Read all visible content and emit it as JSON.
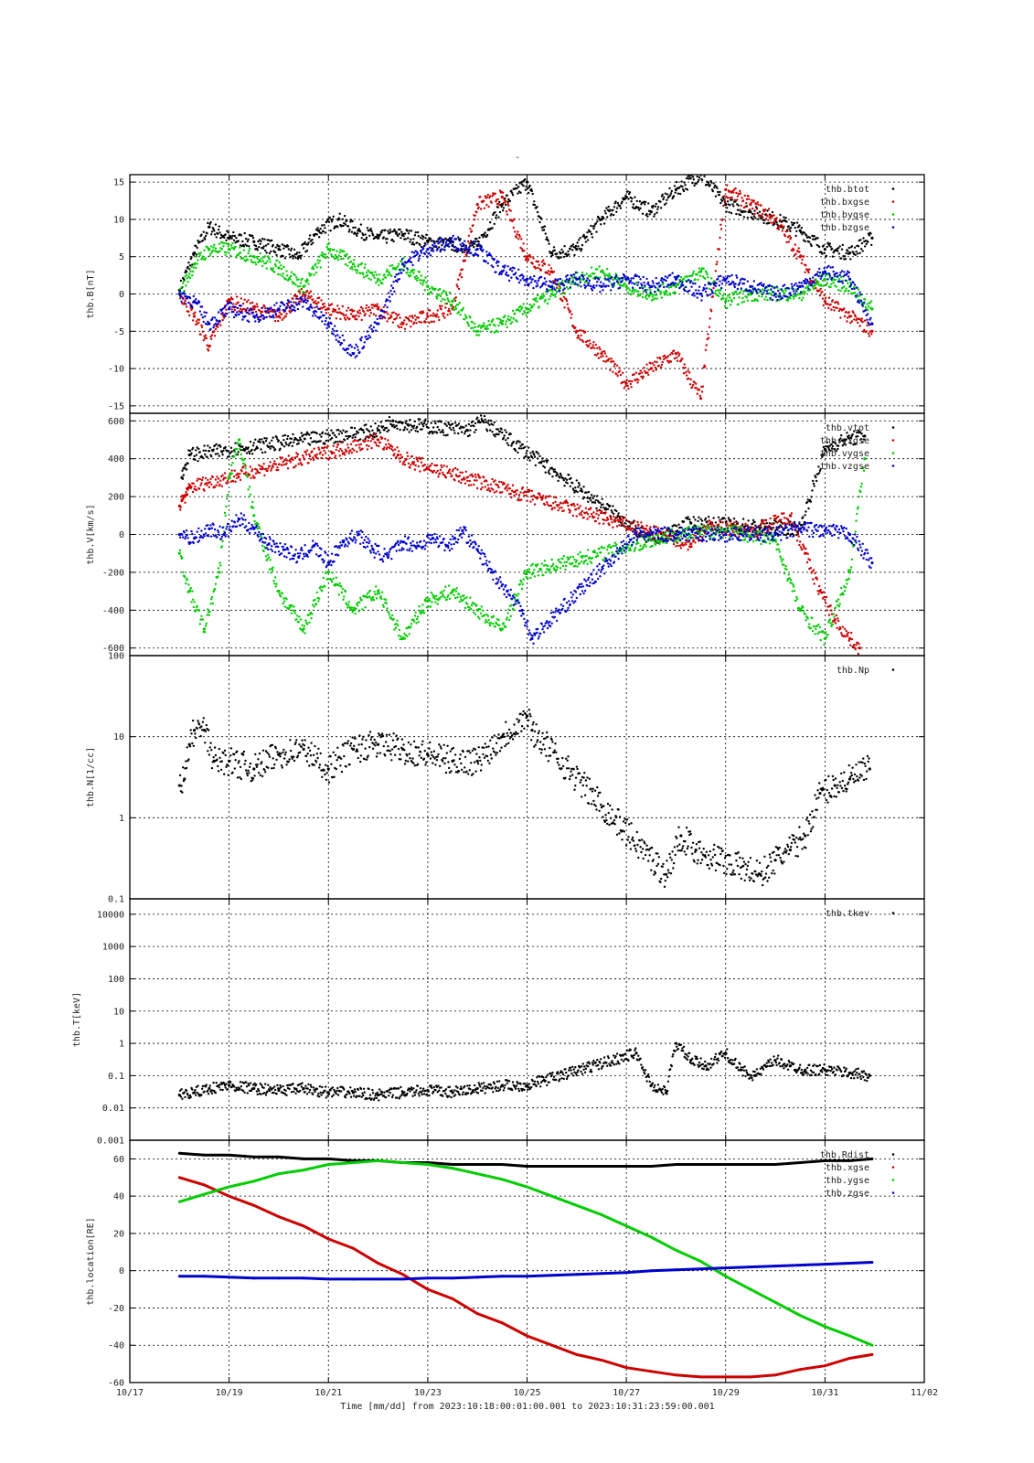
{
  "page": {
    "title": "-"
  },
  "chart_data": [
    {
      "type": "scatter",
      "ylabel": "thb.B[nT]",
      "ylim": [
        -16,
        16
      ],
      "y_ticks": [
        15,
        10,
        5,
        0,
        -5,
        -10,
        -15
      ],
      "legend_position": "top-right",
      "series": [
        {
          "name": "thb.btot",
          "color": "#000000",
          "x": [
            18.0,
            18.3,
            18.6,
            19.0,
            19.5,
            20.0,
            20.4,
            20.8,
            21.2,
            21.6,
            22.0,
            22.5,
            23.0,
            23.5,
            24.0,
            24.5,
            25.0,
            25.5,
            26.0,
            26.5,
            27.0,
            27.5,
            28.0,
            28.5,
            29.0,
            29.5,
            30.0,
            30.5,
            31.0,
            31.5,
            31.95
          ],
          "y": [
            0.5,
            5.5,
            9,
            7.5,
            7,
            6,
            5,
            8.5,
            10,
            8.5,
            7.5,
            8,
            7,
            6.5,
            6.5,
            12,
            15,
            5.5,
            6,
            10,
            13,
            11,
            14,
            16,
            12,
            11,
            10,
            8.5,
            6,
            5.5,
            7.5
          ]
        },
        {
          "name": "thb.bxgse",
          "color": "#cc0000",
          "x": [
            18.0,
            18.3,
            18.6,
            19.0,
            19.5,
            20.0,
            20.5,
            21.0,
            21.5,
            22.0,
            22.5,
            23.0,
            23.5,
            24.0,
            24.5,
            25.0,
            25.5,
            26.0,
            26.5,
            27.0,
            27.5,
            28.0,
            28.5,
            29.0,
            29.5,
            30.0,
            30.5,
            31.0,
            31.5,
            31.95
          ],
          "y": [
            0,
            -3,
            -7,
            -1,
            -2,
            -3,
            0,
            -2,
            -3,
            -2,
            -4,
            -3,
            -2,
            12,
            13,
            5,
            3,
            -5,
            -8,
            -12,
            -10,
            -8,
            -14,
            14,
            12,
            10,
            5,
            -1,
            -3,
            -5
          ]
        },
        {
          "name": "thb.bygse",
          "color": "#00cc00",
          "x": [
            18.0,
            18.3,
            18.6,
            19.0,
            19.5,
            20.0,
            20.5,
            21.0,
            21.5,
            22.0,
            22.5,
            23.0,
            23.5,
            24.0,
            24.5,
            25.0,
            25.5,
            26.0,
            26.5,
            27.0,
            27.5,
            28.0,
            28.5,
            29.0,
            29.5,
            30.0,
            30.5,
            31.0,
            31.5,
            31.95
          ],
          "y": [
            0,
            4,
            6,
            6,
            5,
            3.5,
            1,
            6,
            4,
            2,
            4,
            1,
            -1,
            -5,
            -4,
            -2,
            0,
            2,
            3,
            1,
            0,
            1,
            3,
            -1,
            0,
            0,
            0,
            2,
            1,
            -2
          ]
        },
        {
          "name": "thb.bzgse",
          "color": "#0000cc",
          "x": [
            18.0,
            18.3,
            18.6,
            19.0,
            19.5,
            20.0,
            20.5,
            21.0,
            21.5,
            22.0,
            22.5,
            23.0,
            23.5,
            24.0,
            24.5,
            25.0,
            25.5,
            26.0,
            26.5,
            27.0,
            27.5,
            28.0,
            28.5,
            29.0,
            29.5,
            30.0,
            30.5,
            31.0,
            31.5,
            31.95
          ],
          "y": [
            0,
            -1,
            -4,
            -2,
            -3,
            -2,
            -1,
            -4,
            -8,
            -4,
            4,
            6,
            7,
            6,
            3,
            2,
            1,
            2,
            1,
            2,
            1,
            2,
            0,
            2,
            1,
            0,
            1,
            3,
            2,
            -4
          ]
        }
      ]
    },
    {
      "type": "scatter",
      "ylabel": "thb.V[km/s]",
      "ylim": [
        -640,
        640
      ],
      "y_ticks": [
        600,
        400,
        200,
        0,
        -200,
        -400,
        -600
      ],
      "legend_position": "top-right",
      "series": [
        {
          "name": "thb.vtot",
          "color": "#000000",
          "x": [
            18.05,
            18.1,
            18.2,
            22.0,
            22.3,
            22.6,
            23.8,
            24.1,
            27.5,
            28.3,
            29.8,
            30.5,
            31.0,
            31.4,
            31.8
          ],
          "y": [
            300,
            350,
            420,
            550,
            600,
            580,
            550,
            600,
            -30,
            60,
            40,
            30,
            450,
            500,
            520
          ]
        },
        {
          "name": "thb.vxgse",
          "color": "#cc0000",
          "x": [
            18.0,
            18.05,
            18.1,
            18.15,
            18.2,
            22.0,
            22.4,
            22.7,
            28.3,
            28.6,
            29.6,
            30.3,
            30.6,
            30.9,
            31.2,
            31.5,
            31.7
          ],
          "y": [
            150,
            180,
            200,
            210,
            250,
            500,
            420,
            380,
            -50,
            40,
            20,
            100,
            -100,
            -300,
            -450,
            -550,
            -600
          ]
        },
        {
          "name": "thb.vygse",
          "color": "#00cc00",
          "x": [
            18.0,
            18.2,
            18.5,
            18.8,
            19.0,
            19.2,
            19.5,
            20.0,
            20.5,
            21.0,
            21.5,
            22.0,
            22.5,
            23.0,
            23.5,
            24.0,
            24.5,
            25.0,
            28.0,
            29.0,
            30.0,
            30.5,
            31.0,
            31.5,
            31.8
          ],
          "y": [
            -100,
            -300,
            -500,
            -200,
            300,
            500,
            100,
            -300,
            -500,
            -200,
            -400,
            -300,
            -550,
            -350,
            -300,
            -400,
            -500,
            -200,
            0,
            20,
            -30,
            -400,
            -550,
            -200,
            400
          ]
        },
        {
          "name": "thb.vzgse",
          "color": "#0000cc",
          "x": [
            18.0,
            18.3,
            18.6,
            18.9,
            19.2,
            19.5,
            19.8,
            20.1,
            20.4,
            20.7,
            21.0,
            21.3,
            21.6,
            21.9,
            22.2,
            22.5,
            22.8,
            23.1,
            23.4,
            23.7,
            24.0,
            24.3,
            24.6,
            24.9,
            25.1,
            27.2,
            28.0,
            29.0,
            30.0,
            30.5,
            31.0,
            31.5,
            31.95
          ],
          "y": [
            0,
            -20,
            30,
            0,
            80,
            30,
            -50,
            -80,
            -120,
            -60,
            -150,
            -40,
            0,
            -80,
            -120,
            -40,
            -60,
            -20,
            -60,
            20,
            -80,
            -200,
            -300,
            -400,
            -550,
            0,
            0,
            0,
            0,
            30,
            20,
            0,
            -150
          ]
        }
      ]
    },
    {
      "type": "scatter",
      "ylabel": "thb.N[1/cc]",
      "y_scale": "log",
      "ylim": [
        0.1,
        100
      ],
      "y_ticks": [
        "100",
        "10",
        "1",
        "0.1"
      ],
      "legend_position": "top-right",
      "series": [
        {
          "name": "thb.Np",
          "color": "#000000",
          "x": [
            18.0,
            18.1,
            18.2,
            18.3,
            18.5,
            18.7,
            19.0,
            19.5,
            20.0,
            20.5,
            21.0,
            21.5,
            22.0,
            22.5,
            23.0,
            23.5,
            24.0,
            24.5,
            25.0,
            25.1,
            27.8,
            28.1,
            28.4,
            29.7,
            30.0,
            30.3,
            30.6,
            30.9,
            31.2,
            31.5,
            31.9
          ],
          "y": [
            2.5,
            3,
            8,
            12,
            12,
            5,
            5,
            4,
            6,
            7,
            4,
            7,
            8,
            7,
            6,
            5,
            5,
            10,
            18,
            12,
            0.2,
            0.6,
            0.4,
            0.2,
            0.3,
            0.4,
            0.6,
            2,
            2.5,
            3,
            4
          ]
        }
      ]
    },
    {
      "type": "scatter",
      "ylabel": "thb.T[keV]",
      "y_scale": "log",
      "ylim": [
        0.001,
        30000
      ],
      "y_ticks": [
        "10000",
        "1000",
        "100",
        "10",
        "1",
        "0.1",
        "0.01",
        "0.001"
      ],
      "legend_position": "top-right",
      "series": [
        {
          "name": "thb.tkev",
          "color": "#000000",
          "x": [
            18.0,
            18.3,
            18.6,
            19.0,
            19.5,
            20.0,
            20.5,
            21.0,
            21.5,
            22.0,
            22.5,
            23.0,
            23.5,
            24.0,
            24.5,
            25.0,
            27.2,
            27.5,
            27.8,
            28.0,
            28.3,
            28.6,
            29.0,
            29.3,
            29.6,
            30.0,
            30.3,
            30.6,
            31.0,
            31.5,
            31.9
          ],
          "y": [
            0.025,
            0.03,
            0.04,
            0.05,
            0.04,
            0.035,
            0.04,
            0.03,
            0.03,
            0.025,
            0.03,
            0.035,
            0.03,
            0.04,
            0.05,
            0.05,
            0.5,
            0.05,
            0.03,
            1,
            0.3,
            0.2,
            0.5,
            0.15,
            0.1,
            0.3,
            0.2,
            0.15,
            0.15,
            0.12,
            0.1
          ]
        }
      ]
    },
    {
      "type": "line",
      "ylabel": "thb.location[RE]",
      "ylim": [
        -60,
        70
      ],
      "y_ticks": [
        60,
        40,
        20,
        0,
        -20,
        -40,
        -60
      ],
      "legend_position": "top-right",
      "series": [
        {
          "name": "thb.Rdist",
          "color": "#000000",
          "x": [
            18.0,
            18.5,
            19.0,
            19.5,
            20.0,
            20.5,
            21.0,
            21.5,
            22.0,
            22.5,
            23.0,
            23.5,
            24.0,
            24.5,
            25.0,
            25.5,
            26.0,
            26.5,
            27.0,
            27.5,
            28.0,
            28.5,
            29.0,
            29.5,
            30.0,
            30.5,
            31.0,
            31.5,
            31.95
          ],
          "y": [
            63,
            62,
            62,
            61,
            61,
            60,
            60,
            59,
            59,
            58,
            58,
            57,
            57,
            57,
            56,
            56,
            56,
            56,
            56,
            56,
            57,
            57,
            57,
            57,
            57,
            58,
            59,
            59,
            60
          ]
        },
        {
          "name": "thb.xgse",
          "color": "#cc0000",
          "x": [
            18.0,
            18.5,
            19.0,
            19.5,
            20.0,
            20.5,
            21.0,
            21.5,
            22.0,
            22.5,
            23.0,
            23.5,
            24.0,
            24.5,
            25.0,
            25.5,
            26.0,
            26.5,
            27.0,
            27.5,
            28.0,
            28.5,
            29.0,
            29.5,
            30.0,
            30.5,
            31.0,
            31.5,
            31.95
          ],
          "y": [
            50,
            46,
            40,
            35,
            29,
            24,
            17,
            12,
            4,
            -2,
            -10,
            -15,
            -23,
            -28,
            -35,
            -40,
            -45,
            -48,
            -52,
            -54,
            -56,
            -57,
            -57,
            -57,
            -56,
            -53,
            -51,
            -47,
            -45
          ]
        },
        {
          "name": "thb.ygse",
          "color": "#00cc00",
          "x": [
            18.0,
            18.5,
            19.0,
            19.5,
            20.0,
            20.5,
            21.0,
            21.5,
            22.0,
            22.5,
            23.0,
            23.5,
            24.0,
            24.5,
            25.0,
            25.5,
            26.0,
            26.5,
            27.0,
            27.5,
            28.0,
            28.5,
            29.0,
            29.5,
            30.0,
            30.5,
            31.0,
            31.5,
            31.95
          ],
          "y": [
            37,
            41,
            45,
            48,
            52,
            54,
            57,
            58,
            59,
            58,
            57,
            55,
            52,
            49,
            45,
            40,
            35,
            30,
            24,
            18,
            11,
            5,
            -3,
            -10,
            -17,
            -24,
            -30,
            -35,
            -40
          ]
        },
        {
          "name": "thb.zgse",
          "color": "#0000cc",
          "x": [
            18.0,
            18.5,
            19.0,
            19.5,
            20.0,
            20.5,
            21.0,
            21.5,
            22.0,
            22.5,
            23.0,
            23.5,
            24.0,
            24.5,
            25.0,
            25.5,
            26.0,
            26.5,
            27.0,
            27.5,
            28.0,
            28.5,
            29.0,
            29.5,
            30.0,
            30.5,
            31.0,
            31.5,
            31.95
          ],
          "y": [
            -3,
            -3,
            -3.5,
            -4,
            -4,
            -4,
            -4.5,
            -4.5,
            -4.5,
            -4.5,
            -4,
            -4,
            -3.5,
            -3,
            -3,
            -2.5,
            -2,
            -1.5,
            -1,
            0,
            0.5,
            1,
            1.5,
            2,
            2.5,
            3,
            3.5,
            4,
            4.5
          ]
        }
      ]
    }
  ],
  "x_axis": {
    "xlim": [
      17,
      33
    ],
    "tick_values": [
      17,
      19,
      21,
      23,
      25,
      27,
      29,
      31,
      33
    ],
    "tick_labels": [
      "10/17",
      "10/19",
      "10/21",
      "10/23",
      "10/25",
      "10/27",
      "10/29",
      "10/31",
      "11/02"
    ],
    "grid_labeled": [
      19,
      21,
      23,
      25,
      27,
      29,
      31
    ],
    "footer": "Time [mm/dd]  from 2023:10:18:00:01:00.001  to  2023:10:31:23:59:00.001"
  }
}
